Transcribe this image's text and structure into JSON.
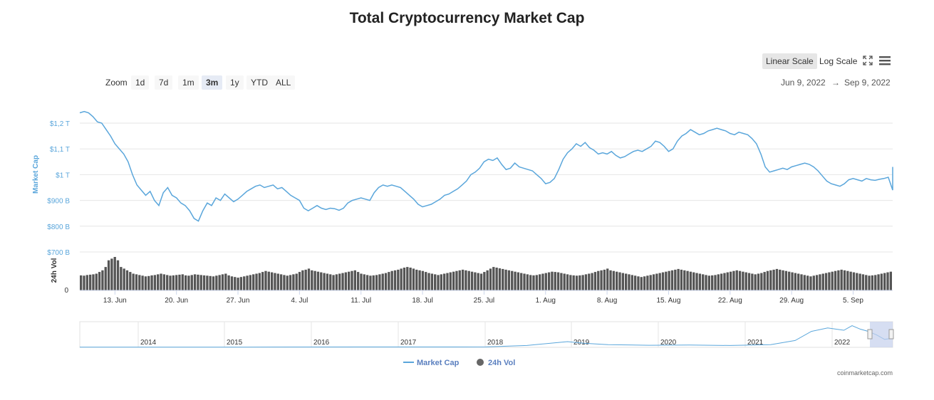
{
  "title": "Total Cryptocurrency Market Cap",
  "toolbar": {
    "zoom_label": "Zoom",
    "zoom_buttons": [
      "1d",
      "7d",
      "1m",
      "3m",
      "1y",
      "YTD",
      "ALL"
    ],
    "active_zoom": "3m",
    "linear_label": "Linear Scale",
    "log_label": "Log Scale",
    "icons": [
      "fullscreen-icon",
      "menu-icon"
    ]
  },
  "range": {
    "from": "Jun 9, 2022",
    "arrow": "→",
    "to": "Sep 9, 2022"
  },
  "credit": "coinmarketcap.com",
  "colors": {
    "line": "#5aa6db",
    "volume": "#555555",
    "grid": "#e6e6e6",
    "navigator_mask": "#c5d0ec"
  },
  "chart_data": {
    "type": "line",
    "title": "Total Cryptocurrency Market Cap",
    "ylabel": "Market Cap",
    "vol_label": "24h Vol",
    "ylim": [
      700,
      1250
    ],
    "yticks": [
      "$700 B",
      "$800 B",
      "$900 B",
      "$1 T",
      "$1,1 T",
      "$1,2 T"
    ],
    "ytick_values": [
      700,
      800,
      900,
      1000,
      1100,
      1200
    ],
    "vol_zero_label": "0",
    "xticks": [
      "13. Jun",
      "20. Jun",
      "27. Jun",
      "4. Jul",
      "11. Jul",
      "18. Jul",
      "25. Jul",
      "1. Aug",
      "8. Aug",
      "15. Aug",
      "22. Aug",
      "29. Aug",
      "5. Sep"
    ],
    "xtick_days": [
      4,
      11,
      18,
      25,
      32,
      39,
      46,
      53,
      60,
      67,
      74,
      81,
      88
    ],
    "day_range": [
      0,
      92.5
    ],
    "series": [
      {
        "name": "Market Cap",
        "unit": "B USD",
        "points": [
          [
            0,
            1240
          ],
          [
            0.5,
            1245
          ],
          [
            1,
            1240
          ],
          [
            1.5,
            1225
          ],
          [
            2,
            1205
          ],
          [
            2.5,
            1200
          ],
          [
            3,
            1175
          ],
          [
            3.5,
            1150
          ],
          [
            4,
            1120
          ],
          [
            4.5,
            1100
          ],
          [
            5,
            1080
          ],
          [
            5.5,
            1050
          ],
          [
            6,
            1000
          ],
          [
            6.5,
            960
          ],
          [
            7,
            940
          ],
          [
            7.5,
            920
          ],
          [
            8,
            935
          ],
          [
            8.5,
            900
          ],
          [
            9,
            880
          ],
          [
            9.5,
            930
          ],
          [
            10,
            950
          ],
          [
            10.5,
            920
          ],
          [
            11,
            910
          ],
          [
            11.5,
            890
          ],
          [
            12,
            880
          ],
          [
            12.5,
            860
          ],
          [
            13,
            830
          ],
          [
            13.5,
            820
          ],
          [
            14,
            860
          ],
          [
            14.5,
            890
          ],
          [
            15,
            880
          ],
          [
            15.5,
            910
          ],
          [
            16,
            900
          ],
          [
            16.5,
            925
          ],
          [
            17,
            910
          ],
          [
            17.5,
            895
          ],
          [
            18,
            905
          ],
          [
            18.5,
            920
          ],
          [
            19,
            935
          ],
          [
            19.5,
            945
          ],
          [
            20,
            955
          ],
          [
            20.5,
            960
          ],
          [
            21,
            950
          ],
          [
            21.5,
            955
          ],
          [
            22,
            960
          ],
          [
            22.5,
            945
          ],
          [
            23,
            950
          ],
          [
            23.5,
            935
          ],
          [
            24,
            920
          ],
          [
            24.5,
            910
          ],
          [
            25,
            900
          ],
          [
            25.5,
            870
          ],
          [
            26,
            860
          ],
          [
            26.5,
            870
          ],
          [
            27,
            880
          ],
          [
            27.5,
            870
          ],
          [
            28,
            865
          ],
          [
            28.5,
            870
          ],
          [
            29,
            868
          ],
          [
            29.5,
            862
          ],
          [
            30,
            870
          ],
          [
            30.5,
            890
          ],
          [
            31,
            900
          ],
          [
            31.5,
            905
          ],
          [
            32,
            910
          ],
          [
            32.5,
            905
          ],
          [
            33,
            900
          ],
          [
            33.5,
            930
          ],
          [
            34,
            950
          ],
          [
            34.5,
            960
          ],
          [
            35,
            955
          ],
          [
            35.5,
            960
          ],
          [
            36,
            955
          ],
          [
            36.5,
            950
          ],
          [
            37,
            935
          ],
          [
            37.5,
            920
          ],
          [
            38,
            905
          ],
          [
            38.5,
            885
          ],
          [
            39,
            875
          ],
          [
            39.5,
            880
          ],
          [
            40,
            885
          ],
          [
            40.5,
            895
          ],
          [
            41,
            905
          ],
          [
            41.5,
            920
          ],
          [
            42,
            925
          ],
          [
            42.5,
            935
          ],
          [
            43,
            945
          ],
          [
            43.5,
            960
          ],
          [
            44,
            975
          ],
          [
            44.5,
            1000
          ],
          [
            45,
            1010
          ],
          [
            45.5,
            1025
          ],
          [
            46,
            1050
          ],
          [
            46.5,
            1060
          ],
          [
            47,
            1055
          ],
          [
            47.5,
            1065
          ],
          [
            48,
            1040
          ],
          [
            48.5,
            1020
          ],
          [
            49,
            1025
          ],
          [
            49.5,
            1045
          ],
          [
            50,
            1030
          ],
          [
            50.5,
            1025
          ],
          [
            51,
            1020
          ],
          [
            51.5,
            1015
          ],
          [
            52,
            1000
          ],
          [
            52.5,
            985
          ],
          [
            53,
            965
          ],
          [
            53.5,
            970
          ],
          [
            54,
            985
          ],
          [
            54.5,
            1020
          ],
          [
            55,
            1060
          ],
          [
            55.5,
            1085
          ],
          [
            56,
            1100
          ],
          [
            56.5,
            1120
          ],
          [
            57,
            1110
          ],
          [
            57.5,
            1125
          ],
          [
            58,
            1105
          ],
          [
            58.5,
            1095
          ],
          [
            59,
            1080
          ],
          [
            59.5,
            1085
          ],
          [
            60,
            1080
          ],
          [
            60.5,
            1090
          ],
          [
            61,
            1075
          ],
          [
            61.5,
            1065
          ],
          [
            62,
            1070
          ],
          [
            62.5,
            1080
          ],
          [
            63,
            1090
          ],
          [
            63.5,
            1095
          ],
          [
            64,
            1090
          ],
          [
            64.5,
            1100
          ],
          [
            65,
            1110
          ],
          [
            65.5,
            1130
          ],
          [
            66,
            1125
          ],
          [
            66.5,
            1110
          ],
          [
            67,
            1090
          ],
          [
            67.5,
            1100
          ],
          [
            68,
            1130
          ],
          [
            68.5,
            1150
          ],
          [
            69,
            1160
          ],
          [
            69.5,
            1175
          ],
          [
            70,
            1165
          ],
          [
            70.5,
            1155
          ],
          [
            71,
            1160
          ],
          [
            71.5,
            1170
          ],
          [
            72,
            1175
          ],
          [
            72.5,
            1180
          ],
          [
            73,
            1175
          ],
          [
            73.5,
            1170
          ],
          [
            74,
            1160
          ],
          [
            74.5,
            1155
          ],
          [
            75,
            1165
          ],
          [
            75.5,
            1160
          ],
          [
            76,
            1155
          ],
          [
            76.5,
            1140
          ],
          [
            77,
            1120
          ],
          [
            77.5,
            1080
          ],
          [
            78,
            1030
          ],
          [
            78.5,
            1010
          ],
          [
            79,
            1015
          ],
          [
            79.5,
            1020
          ],
          [
            80,
            1025
          ],
          [
            80.5,
            1020
          ],
          [
            81,
            1030
          ],
          [
            81.5,
            1035
          ],
          [
            82,
            1040
          ],
          [
            82.5,
            1045
          ],
          [
            83,
            1040
          ],
          [
            83.5,
            1030
          ],
          [
            84,
            1015
          ],
          [
            84.5,
            995
          ],
          [
            85,
            975
          ],
          [
            85.5,
            965
          ],
          [
            86,
            960
          ],
          [
            86.5,
            955
          ],
          [
            87,
            965
          ],
          [
            87.5,
            980
          ],
          [
            88,
            985
          ],
          [
            88.5,
            980
          ],
          [
            89,
            975
          ],
          [
            89.5,
            985
          ],
          [
            90,
            980
          ],
          [
            90.5,
            978
          ],
          [
            91,
            982
          ],
          [
            91.5,
            985
          ],
          [
            92,
            990
          ],
          [
            92.5,
            940
          ],
          [
            93,
            950
          ],
          [
            93.5,
            955
          ],
          [
            94,
            975
          ],
          [
            94.5,
            985
          ],
          [
            95,
            1010
          ],
          [
            95.5,
            1030
          ]
        ]
      },
      {
        "name": "24h Vol",
        "values": [
          45,
          44,
          46,
          47,
          48,
          50,
          55,
          60,
          70,
          90,
          95,
          100,
          90,
          70,
          65,
          60,
          55,
          50,
          48,
          46,
          44,
          42,
          43,
          45,
          46,
          48,
          50,
          48,
          46,
          44,
          45,
          46,
          47,
          48,
          45,
          44,
          46,
          48,
          47,
          46,
          45,
          44,
          43,
          42,
          44,
          46,
          48,
          50,
          45,
          42,
          40,
          38,
          40,
          42,
          44,
          46,
          48,
          50,
          52,
          55,
          58,
          56,
          54,
          52,
          50,
          48,
          46,
          44,
          46,
          48,
          50,
          55,
          60,
          62,
          65,
          60,
          58,
          56,
          54,
          52,
          50,
          48,
          46,
          48,
          50,
          52,
          54,
          56,
          58,
          60,
          55,
          50,
          48,
          46,
          44,
          45,
          46,
          48,
          50,
          52,
          55,
          58,
          60,
          62,
          65,
          68,
          70,
          68,
          65,
          62,
          60,
          58,
          55,
          52,
          50,
          48,
          46,
          48,
          50,
          52,
          54,
          56,
          58,
          60,
          62,
          60,
          58,
          56,
          54,
          52,
          50,
          55,
          60,
          65,
          70,
          68,
          66,
          64,
          62,
          60,
          58,
          56,
          54,
          52,
          50,
          48,
          46,
          45,
          46,
          48,
          50,
          52,
          54,
          56,
          55,
          54,
          52,
          50,
          48,
          46,
          45,
          44,
          45,
          46,
          48,
          50,
          52,
          55,
          58,
          60,
          62,
          65,
          60,
          58,
          56,
          54,
          52,
          50,
          48,
          46,
          44,
          42,
          40,
          42,
          44,
          46,
          48,
          50,
          52,
          54,
          56,
          58,
          60,
          62,
          64,
          62,
          60,
          58,
          56,
          54,
          52,
          50,
          48,
          46,
          44,
          45,
          46,
          48,
          50,
          52,
          54,
          56,
          58,
          60,
          58,
          56,
          54,
          52,
          50,
          48,
          50,
          52,
          55,
          58,
          60,
          62,
          64,
          62,
          60,
          58,
          56,
          54,
          52,
          50,
          48,
          46,
          44,
          42,
          44,
          46,
          48,
          50,
          52,
          54,
          56,
          58,
          60,
          62,
          60,
          58,
          56,
          54,
          52,
          50,
          48,
          46,
          44,
          45,
          46,
          48,
          50,
          52,
          54,
          56
        ]
      }
    ],
    "navigator": {
      "years": [
        "2014",
        "2015",
        "2016",
        "2017",
        "2018",
        "2019",
        "2020",
        "2021",
        "2022"
      ],
      "points": [
        [
          0,
          0.01
        ],
        [
          0.2,
          0.01
        ],
        [
          0.4,
          0.015
        ],
        [
          0.5,
          0.02
        ],
        [
          0.55,
          0.08
        ],
        [
          0.6,
          0.25
        ],
        [
          0.62,
          0.18
        ],
        [
          0.65,
          0.12
        ],
        [
          0.7,
          0.09
        ],
        [
          0.75,
          0.1
        ],
        [
          0.8,
          0.08
        ],
        [
          0.85,
          0.12
        ],
        [
          0.88,
          0.3
        ],
        [
          0.9,
          0.7
        ],
        [
          0.92,
          0.85
        ],
        [
          0.94,
          0.75
        ],
        [
          0.95,
          0.95
        ],
        [
          0.96,
          0.8
        ],
        [
          0.97,
          0.7
        ],
        [
          0.98,
          0.55
        ],
        [
          0.99,
          0.35
        ],
        [
          1,
          0.4
        ]
      ]
    }
  }
}
